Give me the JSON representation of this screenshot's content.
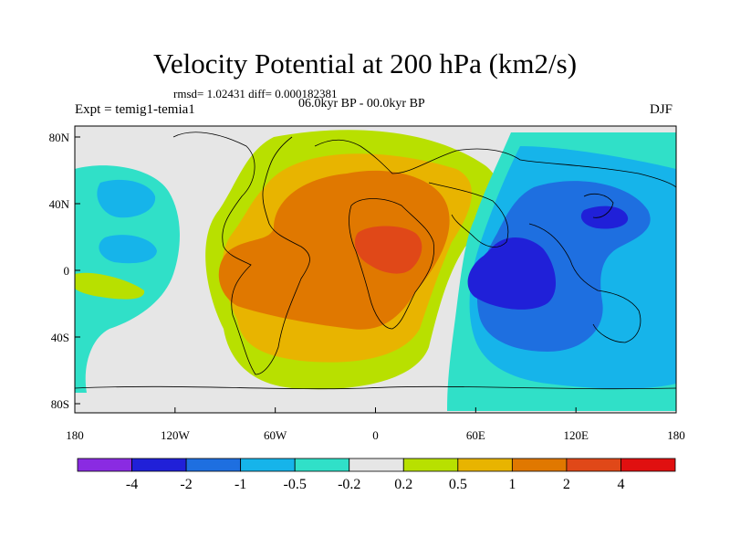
{
  "title": "Velocity Potential at 200 hPa (km2/s)",
  "stats_line": "rmsd= 1.02431 diff= 0.000182381",
  "period": "06.0kyr BP - 00.0kyr BP",
  "experiment": "Expt = temig1-temia1",
  "season": "DJF",
  "lat_ticks": [
    "80N",
    "40N",
    "0",
    "40S",
    "80S"
  ],
  "lon_ticks": [
    "180",
    "120W",
    "60W",
    "0",
    "60E",
    "120E",
    "180"
  ],
  "colorbar": {
    "colors": [
      "#8a2be2",
      "#2020d8",
      "#1e6fe0",
      "#16b4ea",
      "#30e0c8",
      "#e6e6e6",
      "#b8e000",
      "#e8b400",
      "#e07800",
      "#e04818",
      "#e01010"
    ],
    "labels": [
      "-4",
      "-2",
      "-1",
      "-0.5",
      "-0.2",
      "0.2",
      "0.5",
      "1",
      "2",
      "4"
    ]
  },
  "map_colors": {
    "background": "#e6e6e6",
    "level_pos1": "#b8e000",
    "level_pos2": "#e8b400",
    "level_pos3": "#e07800",
    "level_pos4": "#e04818",
    "level_neg1": "#30e0c8",
    "level_neg2": "#16b4ea",
    "level_neg3": "#1e6fe0",
    "level_neg4": "#2020d8",
    "coast": "#000000"
  }
}
